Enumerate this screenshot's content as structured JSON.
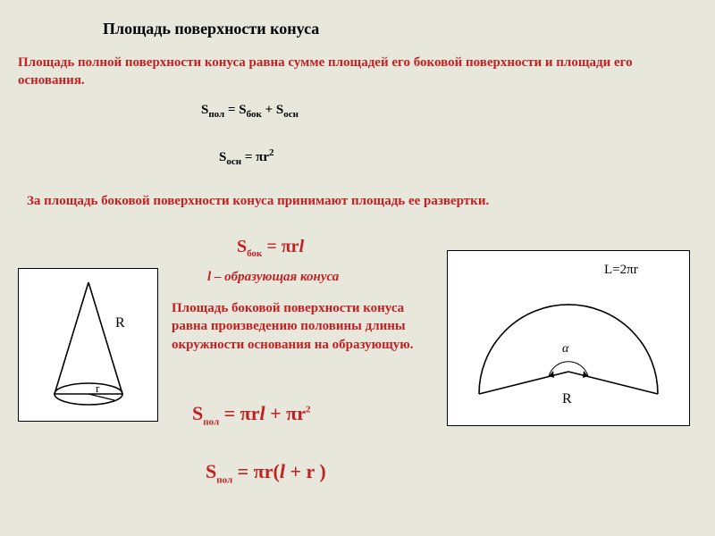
{
  "title": "Площадь поверхности конуса",
  "intro": "Площадь полной поверхности конуса равна сумме площадей его боковой поверхности и площади его основания.",
  "formulas": {
    "sum_html": "S<sub>пол</sub> = S<sub>бок</sub> + S<sub>осн</sub>",
    "base_html": "S<sub>осн</sub> = πr<sup>2</sup>",
    "side_html": "S<sub>бок</sub> = πr<i>l</i>",
    "full_html": "S<sub>пол</sub> = πr<i>l</i> + πr<sup>2</sup>",
    "factored_html": "S<sub>пол</sub> = πr(<i>l</i> + r )"
  },
  "lateral_text": "За площадь боковой поверхности конуса принимают площадь ее развертки.",
  "l_def": "l – образующая конуса",
  "side_theorem": "Площадь боковой поверхности конуса равна произведению половины длины окружности основания на образующую.",
  "diagrams": {
    "cone": {
      "R_label": "R",
      "r_label": "r"
    },
    "sector": {
      "arc_label": "L=2πr",
      "alpha_label": "α",
      "R_label": "R"
    }
  },
  "colors": {
    "bg": "#e8e7dc",
    "accent": "#c32121",
    "line": "#000000"
  }
}
